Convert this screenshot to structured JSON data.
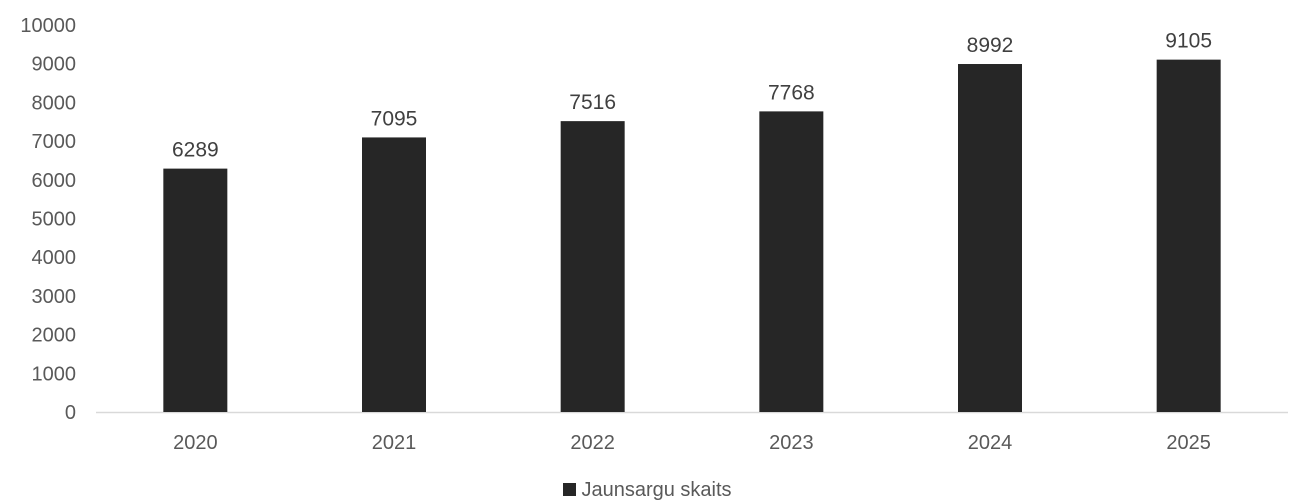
{
  "chart_data": {
    "type": "bar",
    "categories": [
      "2020",
      "2021",
      "2022",
      "2023",
      "2024",
      "2025"
    ],
    "series": [
      {
        "name": "Jaunsargu skaits",
        "values": [
          6289,
          7095,
          7516,
          7768,
          8992,
          9105
        ],
        "color": "#262626"
      }
    ],
    "ylim": [
      0,
      10000
    ],
    "yticks": [
      0,
      1000,
      2000,
      3000,
      4000,
      5000,
      6000,
      7000,
      8000,
      9000,
      10000
    ],
    "grid": false,
    "legend_position": "bottom",
    "axis_color": "#d9d9d9"
  }
}
